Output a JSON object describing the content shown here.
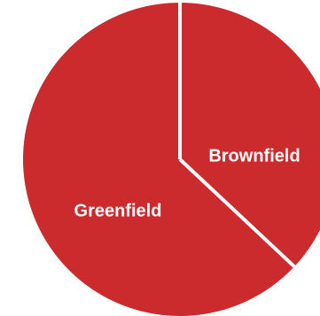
{
  "chart_data": {
    "type": "pie",
    "title": "",
    "slices": [
      {
        "label": "Brownfield",
        "value": 37,
        "color": "#cc2b2e"
      },
      {
        "label": "Greenfield",
        "value": 63,
        "color": "#cc2b2e"
      }
    ],
    "separator_color": "#ffffff",
    "legend": "none"
  }
}
